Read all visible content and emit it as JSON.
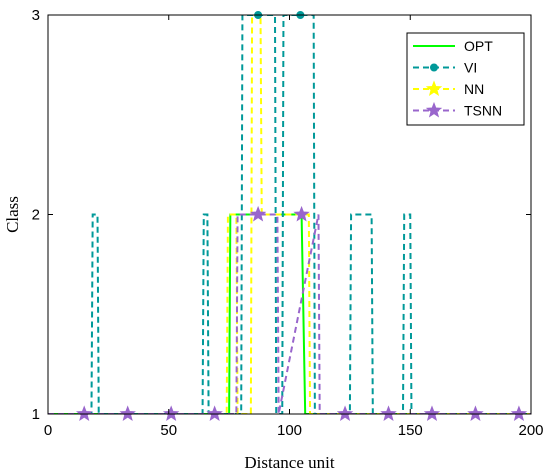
{
  "chart_data": {
    "type": "line",
    "xlabel": "Distance unit",
    "ylabel": "Class",
    "xlim": [
      0,
      200
    ],
    "ylim": [
      1,
      3
    ],
    "xticks": [
      0,
      50,
      100,
      150,
      200
    ],
    "yticks": [
      1,
      2,
      3
    ],
    "grid": false,
    "legend_position": "top-right",
    "series": [
      {
        "name": "OPT",
        "color": "#00ff00",
        "style": "solid",
        "marker": "none",
        "x": [
          0,
          75,
          75.5,
          105,
          106.5,
          200
        ],
        "y": [
          1,
          1,
          2,
          2,
          1,
          1
        ]
      },
      {
        "name": "VI",
        "color": "#009999",
        "style": "dashed",
        "marker": "circle",
        "x": [
          0,
          18,
          18.5,
          20.5,
          21,
          64,
          64.5,
          66,
          66.5,
          80,
          80.5,
          94,
          94.5,
          97,
          97.5,
          110,
          110.5,
          125,
          125.5,
          134,
          134.5,
          147,
          147.5,
          150,
          150.5,
          200
        ],
        "y": [
          1,
          1,
          2,
          2,
          1,
          1,
          2,
          2,
          1,
          1,
          3,
          3,
          1,
          1,
          3,
          3,
          1,
          1,
          2,
          2,
          1,
          1,
          2,
          2,
          1,
          1
        ],
        "marker_x": [
          87,
          104.5
        ],
        "marker_y": [
          3,
          3
        ]
      },
      {
        "name": "NN",
        "color": "#ffff00",
        "style": "dashed",
        "marker": "star",
        "x": [
          0,
          74,
          74.5,
          78,
          78.5,
          84,
          84.5,
          88,
          88.5,
          108,
          108.5,
          200
        ],
        "y": [
          1,
          1,
          2,
          2,
          1,
          1,
          3,
          3,
          2,
          2,
          1,
          1
        ]
      },
      {
        "name": "TSNN",
        "color": "#9966cc",
        "style": "dashed",
        "marker": "star",
        "x": [
          0,
          78,
          78.5,
          95,
          95.5,
          112,
          112.5,
          200
        ],
        "y": [
          1,
          1,
          2,
          2,
          1,
          2,
          1,
          1
        ],
        "marker_x": [
          15,
          33,
          51,
          69,
          87,
          105,
          123,
          141,
          159,
          177,
          195
        ],
        "marker_y": [
          1,
          1,
          1,
          1,
          2,
          2,
          1,
          1,
          1,
          1,
          1
        ]
      }
    ]
  }
}
